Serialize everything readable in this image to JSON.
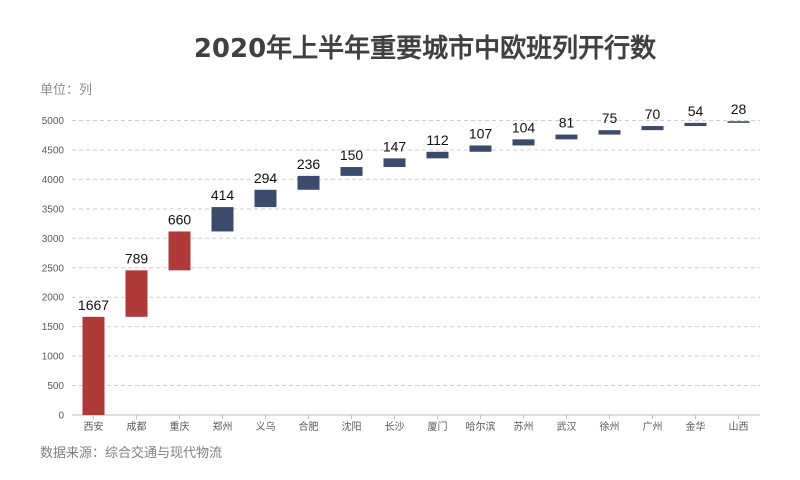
{
  "title": "2020年上半年重要城市中欧班列开行数",
  "unit_label": "单位：列",
  "source": "数据来源：综合交通与现代物流",
  "colors": {
    "highlight": "#b03a3a",
    "normal": "#3c4a6b"
  },
  "chart_data": {
    "type": "bar",
    "variant": "waterfall",
    "title": "2020年上半年重要城市中欧班列开行数",
    "ylabel": "单位：列",
    "ylim": [
      0,
      5000
    ],
    "yticks": [
      0,
      500,
      1000,
      1500,
      2000,
      2500,
      3000,
      3500,
      4000,
      4500,
      5000
    ],
    "grid": true,
    "categories": [
      "西安",
      "成都",
      "重庆",
      "郑州",
      "义乌",
      "合肥",
      "沈阳",
      "长沙",
      "厦门",
      "哈尔滨",
      "苏州",
      "武汉",
      "徐州",
      "广州",
      "金华",
      "山西"
    ],
    "values": [
      1667,
      789,
      660,
      414,
      294,
      236,
      150,
      147,
      112,
      107,
      104,
      81,
      75,
      70,
      54,
      28
    ],
    "highlight_count": 3
  }
}
